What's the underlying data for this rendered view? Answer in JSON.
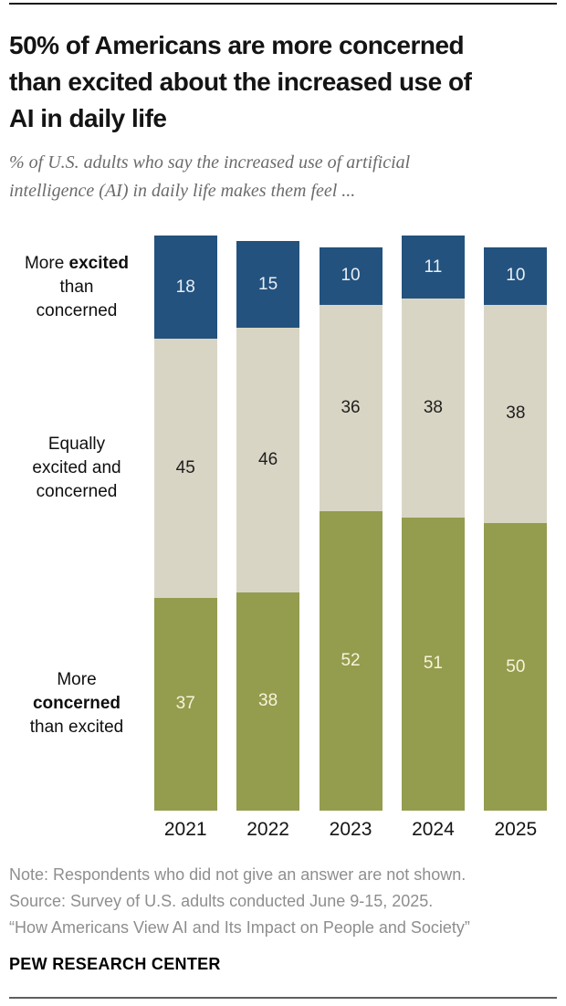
{
  "header": {
    "title_lines": [
      "50% of Americans are more concerned",
      "than excited about the increased use of",
      "AI in daily life"
    ],
    "subtitle_lines": [
      "% of U.S. adults who say the increased use of artificial",
      "intelligence (AI) in daily life makes them feel ..."
    ]
  },
  "chart_data": {
    "type": "bar",
    "stacked": true,
    "title": "50% of Americans are more concerned than excited about the increased use of AI in daily life",
    "subtitle": "% of U.S. adults who say the increased use of artificial intelligence (AI) in daily life makes them feel ...",
    "units": "% of U.S. adults",
    "categories": [
      "2021",
      "2022",
      "2023",
      "2024",
      "2025"
    ],
    "series": [
      {
        "name": "More excited than concerned",
        "color": "#23527e",
        "label_color": "#e9eff5",
        "values": [
          18,
          15,
          10,
          11,
          10
        ]
      },
      {
        "name": "Equally excited and concerned",
        "color": "#d9d5c4",
        "label_color": "#1f1f1f",
        "values": [
          45,
          46,
          36,
          38,
          38
        ]
      },
      {
        "name": "More concerned than excited",
        "color": "#949c4e",
        "label_color": "#f8f4da",
        "values": [
          37,
          38,
          52,
          51,
          50
        ]
      }
    ],
    "ylim": [
      0,
      100
    ],
    "grid": false,
    "legend_position": "left-row-labels",
    "bar_labels_shown": true
  },
  "row_labels": [
    {
      "lines": [
        [
          {
            "t": "More ",
            "b": false
          },
          {
            "t": "excited",
            "b": true
          }
        ],
        [
          {
            "t": "than",
            "b": false
          }
        ],
        [
          {
            "t": "concerned",
            "b": false
          }
        ]
      ]
    },
    {
      "lines": [
        [
          {
            "t": "Equally",
            "b": false
          }
        ],
        [
          {
            "t": "excited and",
            "b": false
          }
        ],
        [
          {
            "t": "concerned",
            "b": false
          }
        ]
      ]
    },
    {
      "lines": [
        [
          {
            "t": "More",
            "b": false
          }
        ],
        [
          {
            "t": "concerned",
            "b": true
          }
        ],
        [
          {
            "t": "than excited",
            "b": false
          }
        ]
      ]
    }
  ],
  "footer": {
    "note": "Note: Respondents who did not give an answer are not shown.",
    "source": "Source: Survey of U.S. adults conducted June 9-15, 2025.",
    "report_title": "“How Americans View AI and Its Impact on People and Society”",
    "brand": "PEW RESEARCH CENTER"
  }
}
